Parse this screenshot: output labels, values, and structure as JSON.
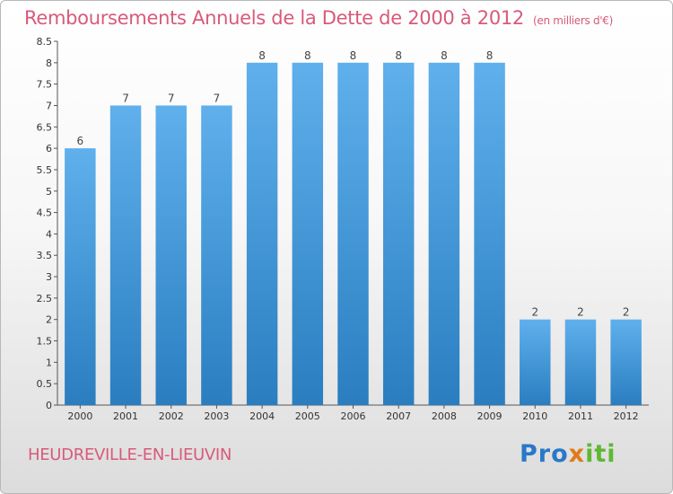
{
  "header": {
    "title": "Remboursements Annuels de la Dette de 2000 à 2012",
    "unit_note": "(en milliers d'€)"
  },
  "footer": {
    "town": "HEUDREVILLE-EN-LIEUVIN",
    "logo_part1": "Pro",
    "logo_part2": "x",
    "logo_part3": "iti"
  },
  "colors": {
    "accent_text": "#d85a7a",
    "bar_top": "#5fb0ec",
    "bar_bottom": "#2a7ec0"
  },
  "chart_data": {
    "type": "bar",
    "title": "Remboursements Annuels de la Dette de 2000 à 2012",
    "xlabel": "",
    "ylabel": "",
    "categories": [
      "2000",
      "2001",
      "2002",
      "2003",
      "2004",
      "2005",
      "2006",
      "2007",
      "2008",
      "2009",
      "2010",
      "2011",
      "2012"
    ],
    "values": [
      6,
      7,
      7,
      7,
      8,
      8,
      8,
      8,
      8,
      8,
      2,
      2,
      2
    ],
    "data_labels": [
      "6",
      "7",
      "7",
      "7",
      "8",
      "8",
      "8",
      "8",
      "8",
      "8",
      "2",
      "2",
      "2"
    ],
    "y_ticks": [
      "0",
      "0.5",
      "1",
      "1.5",
      "2",
      "2.5",
      "3",
      "3.5",
      "4",
      "4.5",
      "5",
      "5.5",
      "6",
      "6.5",
      "7",
      "7.5",
      "8",
      "8.5"
    ],
    "ylim": [
      0,
      8.5
    ],
    "grid": false,
    "legend": "none"
  }
}
